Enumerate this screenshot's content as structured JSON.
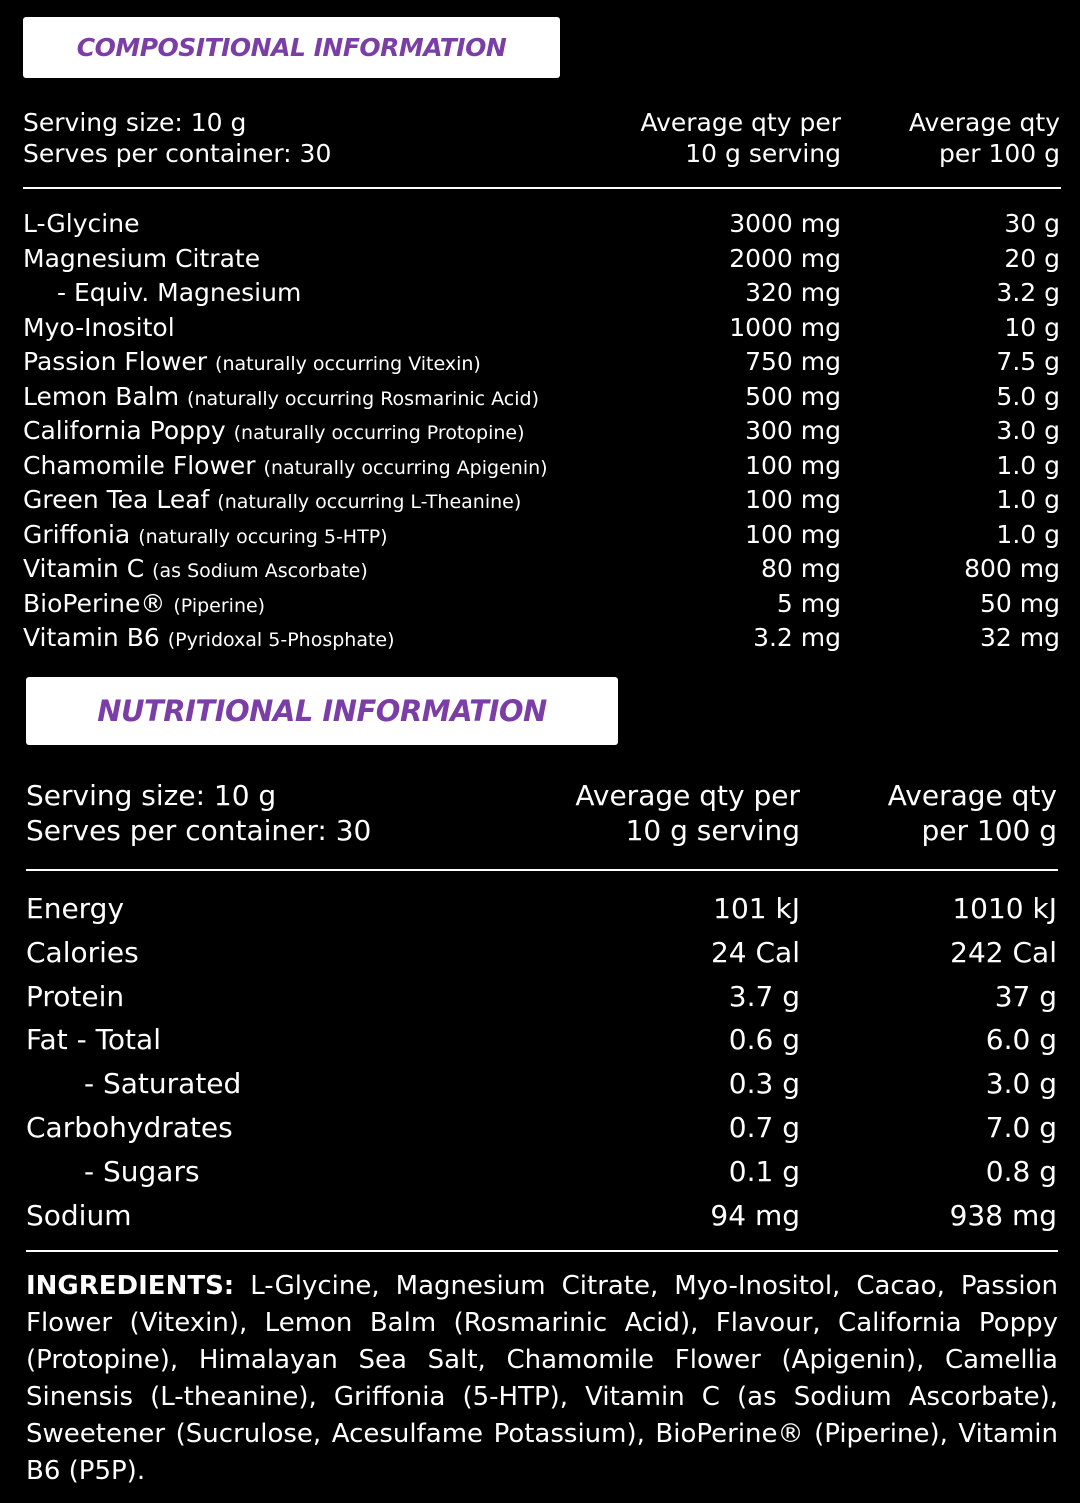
{
  "composition": {
    "title": "COMPOSITIONAL INFORMATION",
    "serving": [
      "Serving size: 10 g",
      "Serves per container: 30"
    ],
    "per_serving_header": [
      "Average qty per",
      "10 g serving"
    ],
    "per_100g_header": [
      "Average qty",
      "per 100 g"
    ],
    "rows": [
      {
        "name": "L-Glycine",
        "per_serving": "3000 mg",
        "per_100g": "30 g"
      },
      {
        "name": "Magnesium Citrate",
        "per_serving": "2000 mg",
        "per_100g": "20 g"
      },
      {
        "name": "- Equiv. Magnesium",
        "per_serving": "320 mg",
        "per_100g": "3.2 g"
      },
      {
        "name": "Myo-Inositol",
        "per_serving": "1000 mg",
        "per_100g": "10 g"
      },
      {
        "name": "Passion Flower",
        "note": "(naturally occurring Vitexin)",
        "per_serving": "750 mg",
        "per_100g": "7.5 g"
      },
      {
        "name": "Lemon Balm",
        "note": "(naturally occurring Rosmarinic Acid)",
        "per_serving": "500 mg",
        "per_100g": "5.0 g"
      },
      {
        "name": "California Poppy",
        "note": "(naturally occurring Protopine)",
        "per_serving": "300 mg",
        "per_100g": "3.0 g"
      },
      {
        "name": "Chamomile Flower",
        "note": "(naturally occurring Apigenin)",
        "per_serving": "100 mg",
        "per_100g": "1.0 g"
      },
      {
        "name": "Green Tea Leaf",
        "note": "(naturally occurring L-Theanine)",
        "per_serving": "100 mg",
        "per_100g": "1.0 g"
      },
      {
        "name": "Griffonia",
        "note": "(naturally occuring 5-HTP)",
        "per_serving": "100 mg",
        "per_100g": "1.0 g"
      },
      {
        "name": "Vitamin C",
        "note": "(as Sodium Ascorbate)",
        "per_serving": "80 mg",
        "per_100g": "800 mg"
      },
      {
        "name": "BioPerine®",
        "note": "(Piperine)",
        "per_serving": "5 mg",
        "per_100g": "50 mg"
      },
      {
        "name": "Vitamin B6",
        "note": "(Pyridoxal 5-Phosphate)",
        "per_serving": "3.2 mg",
        "per_100g": "32 mg"
      }
    ]
  },
  "nutrition": {
    "title": "NUTRITIONAL INFORMATION",
    "serving": [
      "Serving size: 10 g",
      "Serves per container: 30"
    ],
    "per_serving_header": [
      "Average qty per",
      "10 g serving"
    ],
    "per_100g_header": [
      "Average qty",
      "per 100 g"
    ],
    "rows": [
      {
        "name": "Energy",
        "per_serving": "101 kJ",
        "per_100g": "1010 kJ"
      },
      {
        "name": "Calories",
        "per_serving": "24 Cal",
        "per_100g": "242 Cal"
      },
      {
        "name": "Protein",
        "per_serving": "3.7 g",
        "per_100g": "37 g"
      },
      {
        "name": "Fat  - Total",
        "per_serving": "0.6 g",
        "per_100g": "6.0 g"
      },
      {
        "name": "- Saturated",
        "per_serving": "0.3 g",
        "per_100g": "3.0 g"
      },
      {
        "name": "Carbohydrates",
        "per_serving": "0.7 g",
        "per_100g": "7.0 g"
      },
      {
        "name": "- Sugars",
        "per_serving": "0.1 g",
        "per_100g": "0.8 g"
      },
      {
        "name": "Sodium",
        "per_serving": "94 mg",
        "per_100g": "938 mg"
      }
    ]
  },
  "ingredients": {
    "label": "INGREDIENTS:",
    "text": "L-Glycine, Magnesium Citrate, Myo-Inositol, Cacao, Passion Flower (Vitexin), Lemon Balm (Rosmarinic Acid), Flavour, California Poppy (Protopine), Himalayan Sea Salt, Chamomile Flower (Apigenin), Camellia Sinensis (L-theanine), Griffonia (5-HTP), Vitamin C (as Sodium Ascorbate), Sweetener (Sucrulose, Acesulfame Potassium), BioPerine® (Piperine), Vitamin B6 (P5P)."
  }
}
